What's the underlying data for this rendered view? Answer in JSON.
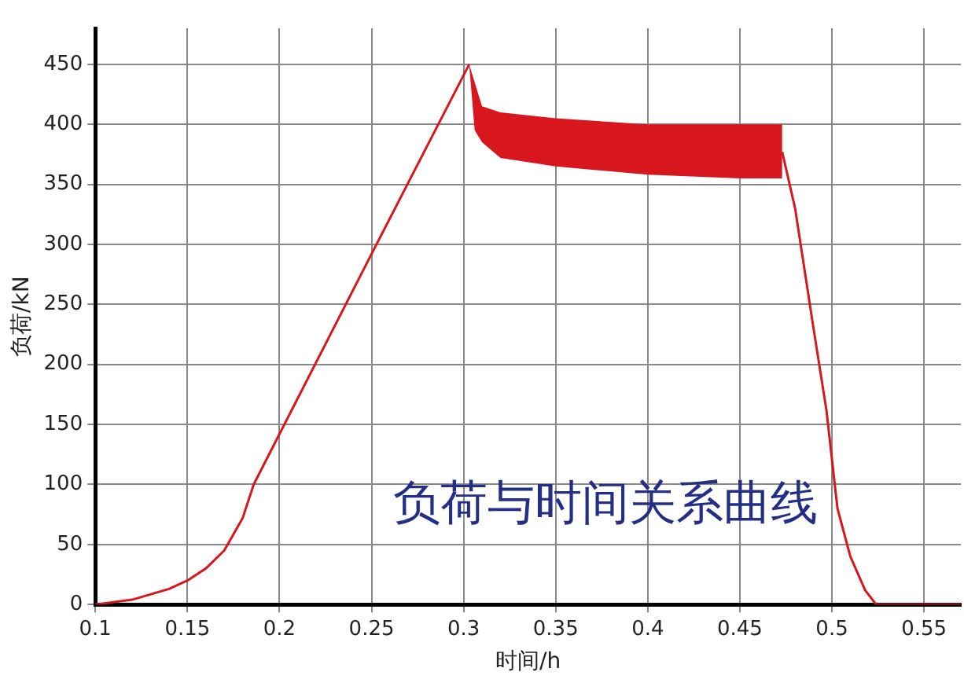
{
  "chart_data": {
    "type": "line",
    "title": "负荷与时间关系曲线",
    "xlabel": "时间/h",
    "ylabel": "负荷/kN",
    "xlim": [
      0.1,
      0.57
    ],
    "xticks": [
      0.1,
      0.15,
      0.2,
      0.25,
      0.3,
      0.35,
      0.4,
      0.45,
      0.5,
      0.55
    ],
    "ylim": [
      0,
      480
    ],
    "yticks": [
      0,
      50,
      100,
      150,
      200,
      250,
      300,
      350,
      400,
      450
    ],
    "grid": true,
    "legend": false,
    "marker": "none",
    "line_style": "solid",
    "series": [
      {
        "color": "#d8161e",
        "x": [
          0.1,
          0.12,
          0.14,
          0.15,
          0.16,
          0.17,
          0.18,
          0.186,
          0.2,
          0.25,
          0.3,
          0.303,
          0.306,
          0.31,
          0.32,
          0.35,
          0.4,
          0.45,
          0.473,
          0.48,
          0.49,
          0.497,
          0.503,
          0.51,
          0.518,
          0.524,
          0.54,
          0.57
        ],
        "values": [
          0,
          4,
          13,
          20,
          30,
          45,
          72,
          100,
          142,
          292,
          441,
          450,
          null,
          null,
          null,
          null,
          null,
          null,
          377,
          330,
          230,
          162,
          80,
          40,
          12,
          0,
          0,
          0
        ],
        "lower": [
          null,
          null,
          null,
          null,
          null,
          null,
          null,
          null,
          null,
          null,
          null,
          450,
          395,
          385,
          372,
          365,
          358,
          355,
          355,
          null,
          null,
          null,
          null,
          null,
          null,
          null,
          null,
          null
        ],
        "upper": [
          null,
          null,
          null,
          null,
          null,
          null,
          null,
          null,
          null,
          null,
          null,
          450,
          435,
          415,
          410,
          405,
          400,
          400,
          400,
          null,
          null,
          null,
          null,
          null,
          null,
          null,
          null,
          null
        ]
      }
    ]
  }
}
